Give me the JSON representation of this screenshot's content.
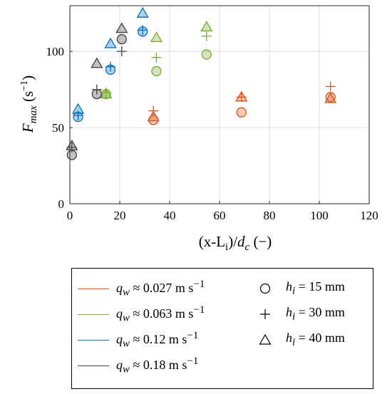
{
  "chart_data": {
    "type": "scatter",
    "xlabel": "(x-L_i)/d_c (−)",
    "ylabel": "F_max (s^−1)",
    "xlim": [
      0,
      120
    ],
    "ylim": [
      0,
      130
    ],
    "x_ticks": [
      "0",
      "20",
      "40",
      "60",
      "80",
      "100",
      "120"
    ],
    "y_ticks": [
      "0",
      "50",
      "100"
    ],
    "grid": true,
    "legend_position": "below plot",
    "flow_rates": [
      {
        "id": "q1",
        "label": "q_w ≈ 0.027 m s^−1",
        "color": "#D95319"
      },
      {
        "id": "q2",
        "label": "q_w ≈ 0.063 m s^−1",
        "color": "#77AC30"
      },
      {
        "id": "q3",
        "label": "q_w ≈ 0.12 m s^−1",
        "color": "#0072BD"
      },
      {
        "id": "q4",
        "label": "q_w ≈ 0.18 m s^−1",
        "color": "#404040"
      }
    ],
    "heights": [
      {
        "id": "h15",
        "label": "h_i = 15 mm",
        "marker": "circle"
      },
      {
        "id": "h30",
        "label": "h_i = 30 mm",
        "marker": "plus"
      },
      {
        "id": "h40",
        "label": "h_i = 40 mm",
        "marker": "triangle"
      }
    ],
    "series": [
      {
        "flow": "q1",
        "height": "h15",
        "points": [
          [
            33.5,
            55
          ],
          [
            68.8,
            60
          ],
          [
            104.5,
            70
          ]
        ]
      },
      {
        "flow": "q1",
        "height": "h30",
        "points": [
          [
            33.5,
            61
          ],
          [
            68.8,
            70
          ],
          [
            104.5,
            77
          ]
        ]
      },
      {
        "flow": "q1",
        "height": "h40",
        "points": [
          [
            33.5,
            57
          ],
          [
            68.8,
            70
          ],
          [
            104.5,
            69
          ]
        ]
      },
      {
        "flow": "q2",
        "height": "h15",
        "points": [
          [
            14.5,
            72
          ],
          [
            34.7,
            87
          ],
          [
            54.8,
            98
          ]
        ]
      },
      {
        "flow": "q2",
        "height": "h30",
        "points": [
          [
            14.5,
            73
          ],
          [
            34.7,
            96
          ],
          [
            54.8,
            110
          ]
        ]
      },
      {
        "flow": "q2",
        "height": "h40",
        "points": [
          [
            14.5,
            72
          ],
          [
            34.7,
            109
          ],
          [
            54.8,
            116
          ]
        ]
      },
      {
        "flow": "q3",
        "height": "h15",
        "points": [
          [
            3.3,
            57
          ],
          [
            16.3,
            88
          ],
          [
            29.2,
            113
          ]
        ]
      },
      {
        "flow": "q3",
        "height": "h30",
        "points": [
          [
            3.3,
            58
          ],
          [
            16.3,
            90
          ],
          [
            29.2,
            114
          ]
        ]
      },
      {
        "flow": "q3",
        "height": "h40",
        "points": [
          [
            3.3,
            62
          ],
          [
            16.3,
            105
          ],
          [
            29.2,
            125
          ]
        ]
      },
      {
        "flow": "q4",
        "height": "h15",
        "points": [
          [
            0.8,
            32
          ],
          [
            10.8,
            72
          ],
          [
            20.8,
            108
          ]
        ]
      },
      {
        "flow": "q4",
        "height": "h30",
        "points": [
          [
            0.8,
            37
          ],
          [
            10.8,
            75
          ],
          [
            20.8,
            100
          ]
        ]
      },
      {
        "flow": "q4",
        "height": "h40",
        "points": [
          [
            0.8,
            38
          ],
          [
            10.8,
            92
          ],
          [
            20.8,
            115
          ]
        ]
      }
    ]
  }
}
